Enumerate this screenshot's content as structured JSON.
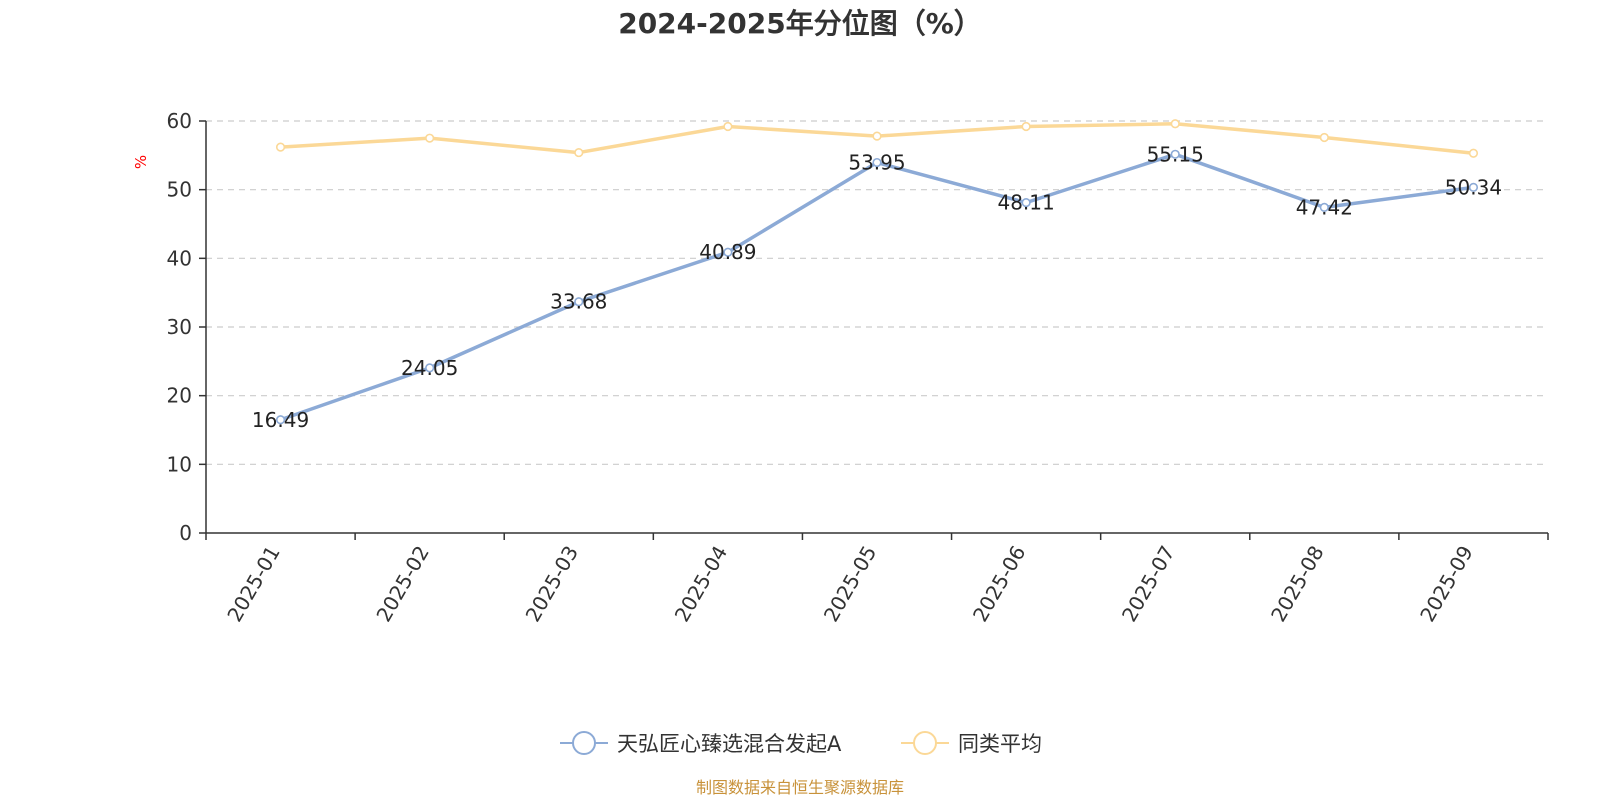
{
  "chart_data": {
    "type": "line",
    "title": "2024-2025年分位图（%）",
    "ylabel": "%",
    "xlabel": "",
    "ylim": [
      0,
      60
    ],
    "yticks": [
      0,
      10,
      20,
      30,
      40,
      50,
      60
    ],
    "grid": true,
    "categories": [
      "2025-01",
      "2025-02",
      "2025-03",
      "2025-04",
      "2025-05",
      "2025-06",
      "2025-07",
      "2025-08",
      "2025-09"
    ],
    "series": [
      {
        "name": "天弘匠心臻选混合发起A",
        "color": "#8caad6",
        "values": [
          16.49,
          24.05,
          33.68,
          40.89,
          53.95,
          48.11,
          55.15,
          47.42,
          50.34
        ],
        "labels": [
          "16.49",
          "24.05",
          "33.68",
          "40.89",
          "53.95",
          "48.11",
          "55.15",
          "47.42",
          "50.34"
        ]
      },
      {
        "name": "同类平均",
        "color": "#fbd897",
        "values": [
          56.2,
          57.5,
          55.4,
          59.2,
          57.8,
          59.2,
          59.6,
          57.6,
          55.3
        ]
      }
    ],
    "legend_position": "bottom-center"
  },
  "colors": {
    "axis": "#333333",
    "grid": "#cccccc",
    "unit_label": "#ff0000",
    "source_text": "#c8923a"
  },
  "source": "制图数据来自恒生聚源数据库"
}
